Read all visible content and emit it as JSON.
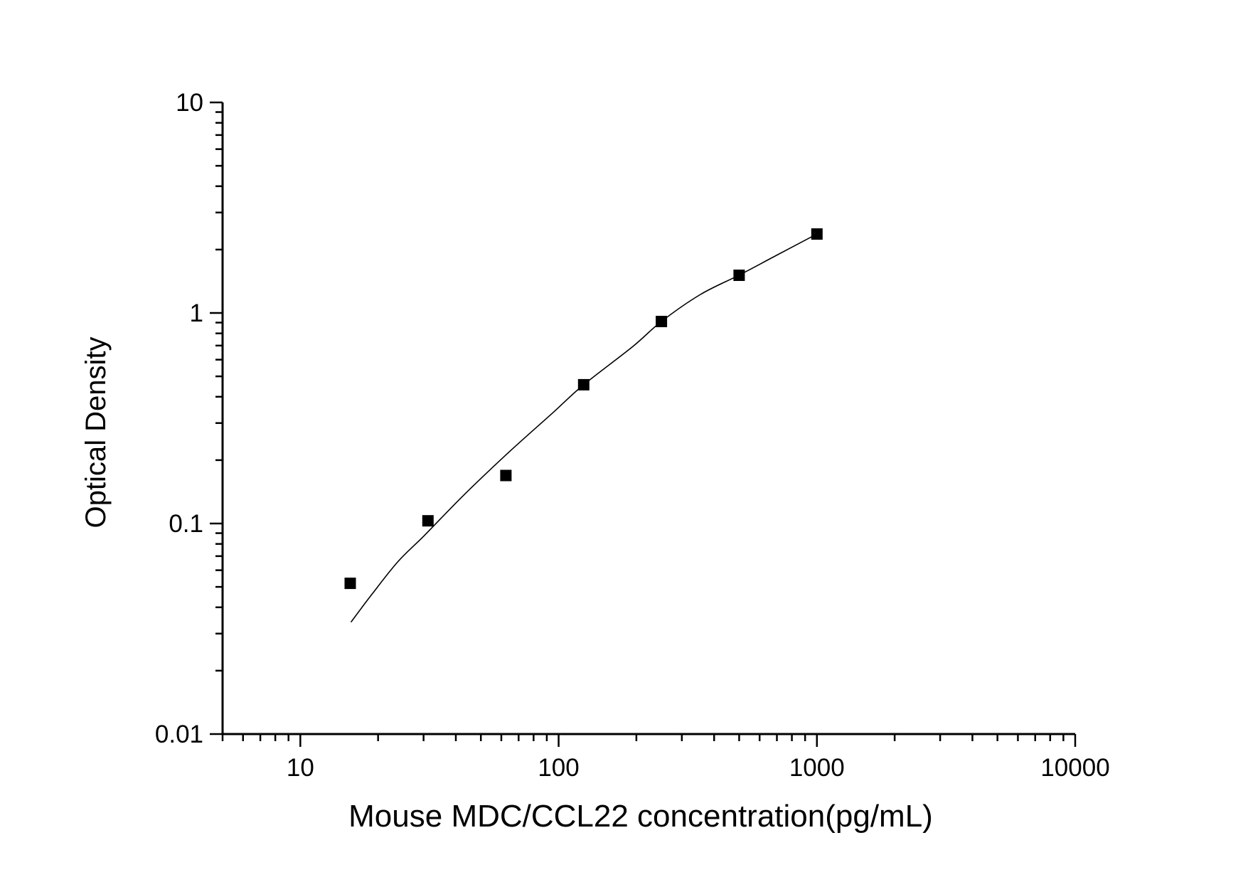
{
  "figure": {
    "background_color": "#ffffff",
    "ink_color": "#000000"
  },
  "chart_data": {
    "type": "scatter",
    "title": "",
    "xlabel": "Mouse MDC/CCL22 concentration(pg/mL)",
    "ylabel": "Optical Density",
    "x_scale": "log",
    "y_scale": "log",
    "xlim": [
      5,
      10000
    ],
    "ylim": [
      0.01,
      10
    ],
    "grid": false,
    "legend": "none",
    "x_ticks": [
      10,
      100,
      1000,
      10000
    ],
    "x_tick_labels": [
      "10",
      "100",
      "1000",
      "10000"
    ],
    "y_ticks": [
      10,
      1,
      0.1,
      0.01
    ],
    "y_tick_labels": [
      "10",
      "1",
      "0.1",
      "0.01"
    ],
    "marker": {
      "shape": "filled-square",
      "color": "#000000",
      "size": 16
    },
    "line": {
      "color": "#000000",
      "width": 1.6
    },
    "series": [
      {
        "name": "standard-points",
        "type": "scatter",
        "points": [
          [
            15.6,
            0.052
          ],
          [
            31.2,
            0.103
          ],
          [
            62.5,
            0.169
          ],
          [
            125,
            0.456
          ],
          [
            250,
            0.911
          ],
          [
            500,
            1.51
          ],
          [
            1000,
            2.371
          ]
        ]
      },
      {
        "name": "fit-curve",
        "type": "line",
        "points": [
          [
            15.7,
            0.034
          ],
          [
            18.9,
            0.046
          ],
          [
            23.9,
            0.066
          ],
          [
            30.3,
            0.088
          ],
          [
            42.3,
            0.134
          ],
          [
            63.1,
            0.214
          ],
          [
            95.3,
            0.337
          ],
          [
            125,
            0.456
          ],
          [
            194,
            0.694
          ],
          [
            250,
            0.911
          ],
          [
            354,
            1.224
          ],
          [
            500,
            1.513
          ],
          [
            689,
            1.863
          ],
          [
            1000,
            2.371
          ]
        ]
      }
    ]
  }
}
